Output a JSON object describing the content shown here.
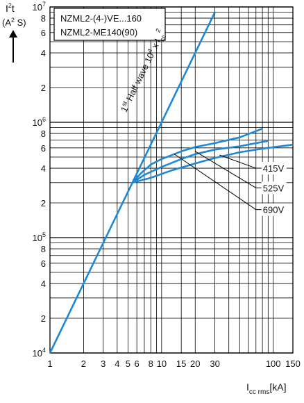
{
  "chart_data": {
    "type": "line",
    "title_lines": [
      "NZML2-(4-)VE...160",
      "NZML2-ME140(90)"
    ],
    "ylabel": {
      "base": "I",
      "sup": "2",
      "post": "t",
      "unit_pre": "(A",
      "unit_sup": "2",
      "unit_post": " S)"
    },
    "xlabel": {
      "base": "I",
      "sub": "cc rms",
      "unit": "[kA]"
    },
    "x_scale": "log",
    "y_scale": "log",
    "xlim": [
      1,
      150
    ],
    "ylim": [
      10000,
      10000000
    ],
    "x_ticks": [
      {
        "v": 1,
        "label": "1"
      },
      {
        "v": 2,
        "label": "2"
      },
      {
        "v": 3,
        "label": "3"
      },
      {
        "v": 4,
        "label": "4"
      },
      {
        "v": 5,
        "label": "5"
      },
      {
        "v": 6,
        "label": "6"
      },
      {
        "v": 8,
        "label": "8"
      },
      {
        "v": 10,
        "label": "10"
      },
      {
        "v": 15,
        "label": "15"
      },
      {
        "v": 20,
        "label": "20"
      },
      {
        "v": 30,
        "label": "30"
      },
      {
        "v": 100,
        "label": "100"
      },
      {
        "v": 150,
        "label": "150"
      }
    ],
    "x_gridlines": [
      1,
      2,
      3,
      4,
      5,
      6,
      7,
      8,
      9,
      10,
      15,
      20,
      30,
      40,
      50,
      60,
      70,
      80,
      90,
      100,
      150
    ],
    "y_ticks": [
      {
        "v": 10000,
        "base": "10",
        "exp": "4"
      },
      {
        "v": 20000,
        "label": "2"
      },
      {
        "v": 40000,
        "label": "4"
      },
      {
        "v": 60000,
        "label": "6"
      },
      {
        "v": 80000,
        "label": "8"
      },
      {
        "v": 100000,
        "base": "10",
        "exp": "5"
      },
      {
        "v": 200000,
        "label": "2"
      },
      {
        "v": 400000,
        "label": "4"
      },
      {
        "v": 600000,
        "label": "6"
      },
      {
        "v": 800000,
        "label": "8"
      },
      {
        "v": 1000000,
        "base": "10",
        "exp": "6"
      },
      {
        "v": 2000000,
        "label": "2"
      },
      {
        "v": 4000000,
        "label": "4"
      },
      {
        "v": 6000000,
        "label": "6"
      },
      {
        "v": 8000000,
        "label": "8"
      },
      {
        "v": 10000000,
        "base": "10",
        "exp": "7"
      }
    ],
    "y_gridlines": [
      10000,
      20000,
      30000,
      40000,
      50000,
      60000,
      70000,
      80000,
      90000,
      100000,
      200000,
      300000,
      400000,
      500000,
      600000,
      700000,
      800000,
      900000,
      1000000,
      2000000,
      3000000,
      4000000,
      5000000,
      6000000,
      7000000,
      8000000,
      9000000,
      10000000
    ],
    "reference_line": {
      "label": {
        "pre": "1",
        "sup1": "st",
        "mid": " Half wave  10",
        "sup2": "4",
        "post": " x I",
        "sub": "cc",
        "sup3": "2"
      },
      "points": [
        [
          1,
          10000
        ],
        [
          30,
          9000000
        ]
      ]
    },
    "series": [
      {
        "name": "415V",
        "points": [
          [
            5.5,
            300000
          ],
          [
            6.5,
            360000
          ],
          [
            8,
            430000
          ],
          [
            10,
            480000
          ],
          [
            15,
            560000
          ],
          [
            20,
            610000
          ],
          [
            30,
            660000
          ],
          [
            50,
            740000
          ],
          [
            80,
            880000
          ]
        ]
      },
      {
        "name": "525V",
        "points": [
          [
            5.5,
            300000
          ],
          [
            7,
            350000
          ],
          [
            10,
            410000
          ],
          [
            15,
            480000
          ],
          [
            20,
            530000
          ],
          [
            30,
            580000
          ],
          [
            50,
            620000
          ],
          [
            90,
            690000
          ]
        ]
      },
      {
        "name": "690V",
        "points": [
          [
            5.5,
            300000
          ],
          [
            8,
            330000
          ],
          [
            12,
            380000
          ],
          [
            20,
            440000
          ],
          [
            30,
            490000
          ],
          [
            50,
            550000
          ],
          [
            80,
            590000
          ],
          [
            150,
            640000
          ]
        ]
      }
    ],
    "callouts": [
      {
        "label": "415V",
        "from": [
          33,
          520000
        ],
        "to": [
          70,
          400000
        ]
      },
      {
        "label": "525V",
        "from": [
          20,
          560000
        ],
        "to": [
          70,
          270000
        ]
      },
      {
        "label": "690V",
        "from": [
          13,
          530000
        ],
        "to": [
          70,
          175000
        ]
      }
    ],
    "colors": {
      "curves": "#1e88d8",
      "grid": "#000000"
    }
  }
}
